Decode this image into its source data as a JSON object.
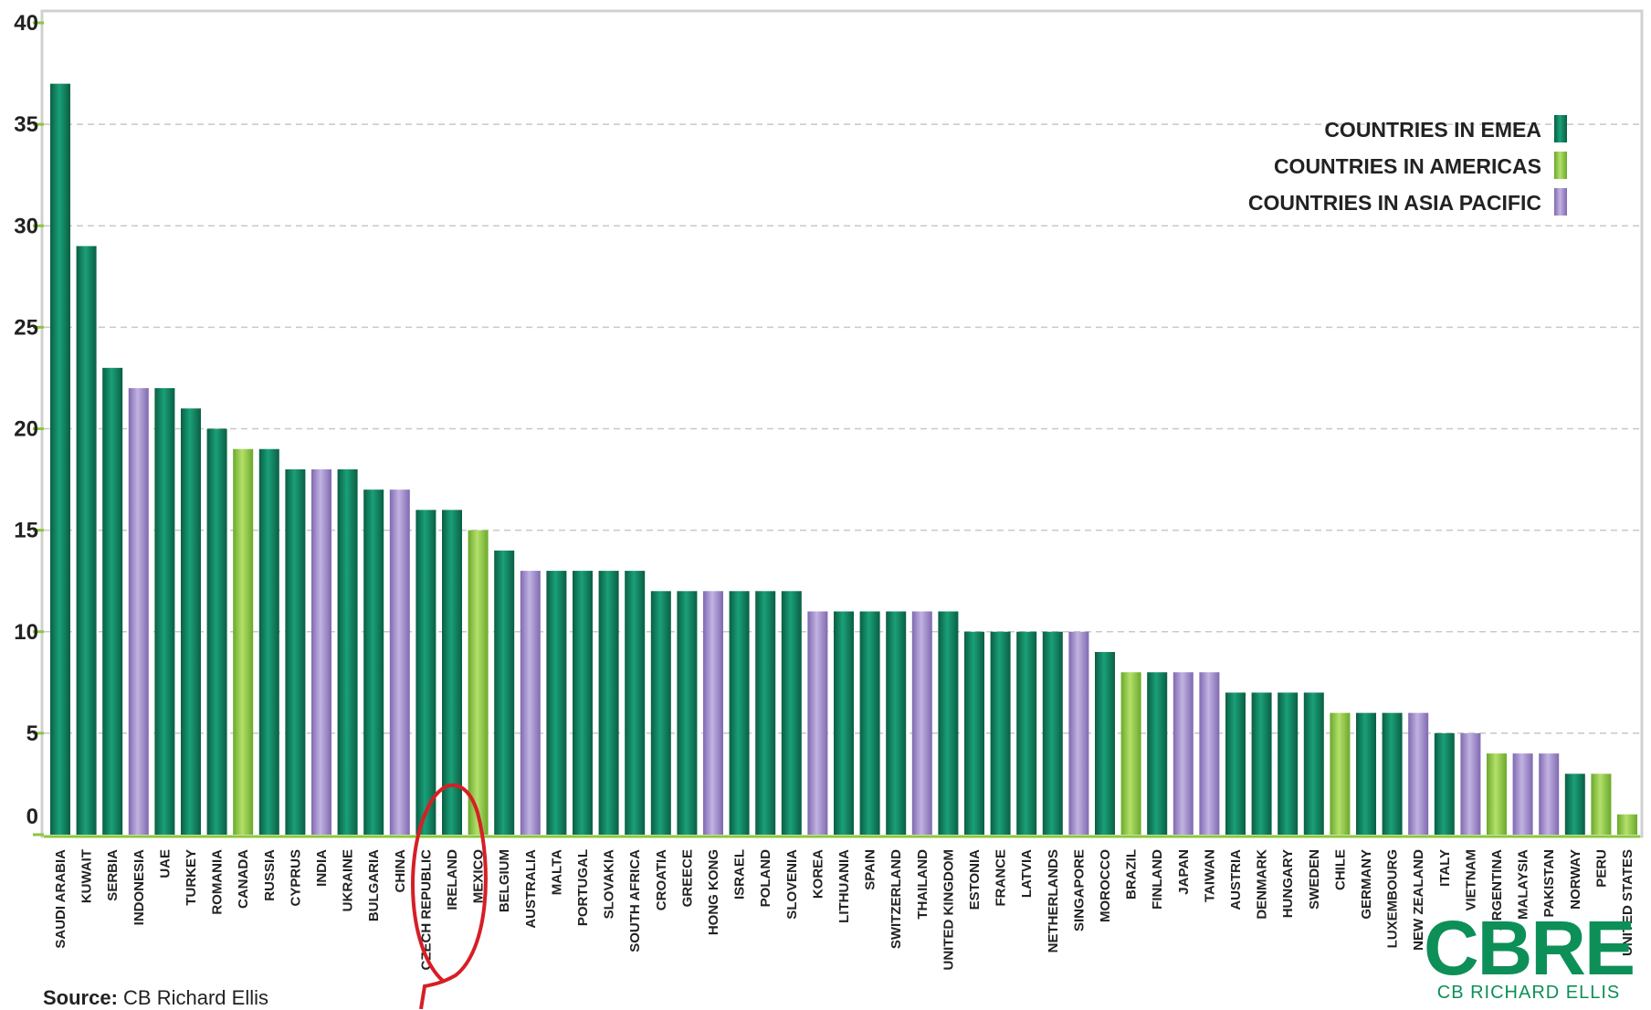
{
  "colors": {
    "emea": "#0e7c5b",
    "americas": "#8cc63f",
    "asia_pacific": "#9b87c5",
    "grid": "#c8c8c8",
    "annotation": "#d61f26"
  },
  "source": {
    "label": "Source:",
    "text": "CB Richard Ellis"
  },
  "logo": {
    "word": "CBRE",
    "sub": "CB RICHARD ELLIS"
  },
  "chart_data": {
    "type": "bar",
    "title": "",
    "xlabel": "",
    "ylabel": "",
    "ylim": [
      0,
      40
    ],
    "yticks": [
      0,
      5,
      10,
      15,
      20,
      25,
      30,
      35,
      40
    ],
    "grid": true,
    "legend_position": "top-right",
    "legend": [
      {
        "key": "emea",
        "label": "COUNTRIES IN EMEA"
      },
      {
        "key": "americas",
        "label": "COUNTRIES IN AMERICAS"
      },
      {
        "key": "asia_pacific",
        "label": "COUNTRIES IN ASIA PACIFIC"
      }
    ],
    "categories": [
      "SAUDI ARABIA",
      "KUWAIT",
      "SERBIA",
      "INDONESIA",
      "UAE",
      "TURKEY",
      "ROMANIA",
      "CANADA",
      "RUSSIA",
      "CYPRUS",
      "INDIA",
      "UKRAINE",
      "BULGARIA",
      "CHINA",
      "CZECH REPUBLIC",
      "IRELAND",
      "MEXICO",
      "BELGIUM",
      "AUSTRALIA",
      "MALTA",
      "PORTUGAL",
      "SLOVAKIA",
      "SOUTH AFRICA",
      "CROATIA",
      "GREECE",
      "HONG KONG",
      "ISRAEL",
      "POLAND",
      "SLOVENIA",
      "KOREA",
      "LITHUANIA",
      "SPAIN",
      "SWITZERLAND",
      "THAILAND",
      "UNITED KINGDOM",
      "ESTONIA",
      "FRANCE",
      "LATVIA",
      "NETHERLANDS",
      "SINGAPORE",
      "MOROCCO",
      "BRAZIL",
      "FINLAND",
      "JAPAN",
      "TAIWAN",
      "AUSTRIA",
      "DENMARK",
      "HUNGARY",
      "SWEDEN",
      "CHILE",
      "GERMANY",
      "LUXEMBOURG",
      "NEW ZEALAND",
      "ITALY",
      "VIETNAM",
      "ARGENTINA",
      "MALAYSIA",
      "PAKISTAN",
      "NORWAY",
      "PERU",
      "UNITED STATES"
    ],
    "values": [
      37,
      29,
      23,
      22,
      22,
      21,
      20,
      19,
      19,
      18,
      18,
      18,
      17,
      17,
      16,
      16,
      15,
      14,
      13,
      13,
      13,
      13,
      13,
      12,
      12,
      12,
      12,
      12,
      12,
      11,
      11,
      11,
      11,
      11,
      11,
      10,
      10,
      10,
      10,
      10,
      9,
      8,
      8,
      8,
      8,
      7,
      7,
      7,
      7,
      6,
      6,
      6,
      6,
      5,
      5,
      4,
      4,
      4,
      3,
      3,
      1
    ],
    "regions": [
      "emea",
      "emea",
      "emea",
      "asia_pacific",
      "emea",
      "emea",
      "emea",
      "americas",
      "emea",
      "emea",
      "asia_pacific",
      "emea",
      "emea",
      "asia_pacific",
      "emea",
      "emea",
      "americas",
      "emea",
      "asia_pacific",
      "emea",
      "emea",
      "emea",
      "emea",
      "emea",
      "emea",
      "asia_pacific",
      "emea",
      "emea",
      "emea",
      "asia_pacific",
      "emea",
      "emea",
      "emea",
      "asia_pacific",
      "emea",
      "emea",
      "emea",
      "emea",
      "emea",
      "asia_pacific",
      "emea",
      "americas",
      "emea",
      "asia_pacific",
      "asia_pacific",
      "emea",
      "emea",
      "emea",
      "emea",
      "americas",
      "emea",
      "emea",
      "asia_pacific",
      "emea",
      "asia_pacific",
      "americas",
      "asia_pacific",
      "asia_pacific",
      "emea",
      "americas",
      "americas"
    ],
    "annotation": {
      "shape": "hand-drawn-circle",
      "target": "IRELAND"
    }
  }
}
